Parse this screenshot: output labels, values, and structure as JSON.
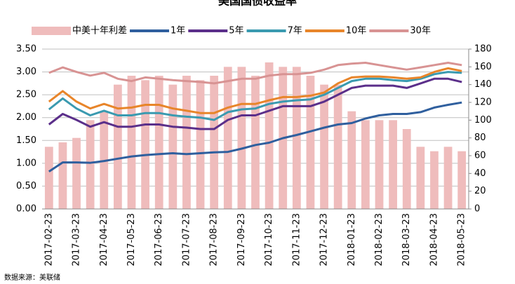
{
  "chart_data": {
    "type": "line",
    "title": "美国国债收益率",
    "source": "数据来源：美联储",
    "categories": [
      "2017-02-23",
      null,
      "2017-03-23",
      null,
      "2017-04-23",
      null,
      "2017-05-23",
      null,
      "2017-06-23",
      null,
      "2017-07-23",
      null,
      "2017-08-23",
      null,
      "2017-09-23",
      null,
      "2017-10-23",
      null,
      "2017-11-23",
      null,
      "2017-12-23",
      null,
      "2018-01-23",
      null,
      "2018-02-23",
      null,
      "2018-03-23",
      null,
      "2018-04-23",
      null,
      "2018-05-23"
    ],
    "series": [
      {
        "name": "中美十年利差",
        "kind": "bar",
        "axis": "y2",
        "color": "#efbcbc",
        "values": [
          70,
          75,
          80,
          100,
          110,
          140,
          150,
          145,
          150,
          140,
          150,
          145,
          150,
          160,
          160,
          150,
          165,
          160,
          160,
          150,
          140,
          140,
          110,
          100,
          100,
          100,
          90,
          70,
          65,
          70,
          65
        ]
      },
      {
        "name": "1年",
        "color": "#2f5f9e",
        "values": [
          0.82,
          1.02,
          1.02,
          1.01,
          1.05,
          1.1,
          1.15,
          1.18,
          1.2,
          1.22,
          1.2,
          1.22,
          1.24,
          1.25,
          1.32,
          1.4,
          1.45,
          1.55,
          1.62,
          1.7,
          1.78,
          1.85,
          1.88,
          1.98,
          2.05,
          2.08,
          2.08,
          2.12,
          2.22,
          2.28,
          2.33
        ]
      },
      {
        "name": "5年",
        "color": "#5b2f8a",
        "values": [
          1.85,
          2.08,
          1.95,
          1.8,
          1.9,
          1.8,
          1.8,
          1.85,
          1.85,
          1.8,
          1.78,
          1.75,
          1.75,
          1.95,
          2.05,
          2.05,
          2.15,
          2.25,
          2.25,
          2.25,
          2.35,
          2.5,
          2.65,
          2.7,
          2.7,
          2.7,
          2.65,
          2.75,
          2.85,
          2.85,
          2.78
        ]
      },
      {
        "name": "7年",
        "color": "#3a9ab0",
        "values": [
          2.18,
          2.42,
          2.2,
          2.05,
          2.15,
          2.05,
          2.05,
          2.1,
          2.1,
          2.05,
          2.02,
          2.0,
          1.95,
          2.12,
          2.18,
          2.2,
          2.3,
          2.35,
          2.38,
          2.4,
          2.5,
          2.65,
          2.8,
          2.85,
          2.85,
          2.82,
          2.8,
          2.85,
          2.95,
          3.0,
          2.98
        ]
      },
      {
        "name": "10年",
        "color": "#e8852a",
        "values": [
          2.35,
          2.58,
          2.35,
          2.2,
          2.3,
          2.2,
          2.22,
          2.28,
          2.28,
          2.2,
          2.15,
          2.1,
          2.1,
          2.22,
          2.3,
          2.3,
          2.38,
          2.45,
          2.45,
          2.48,
          2.55,
          2.75,
          2.88,
          2.9,
          2.9,
          2.88,
          2.85,
          2.88,
          3.0,
          3.08,
          3.02
        ]
      },
      {
        "name": "30年",
        "color": "#d89393",
        "values": [
          2.98,
          3.1,
          3.0,
          2.92,
          2.98,
          2.85,
          2.8,
          2.88,
          2.85,
          2.82,
          2.8,
          2.78,
          2.75,
          2.8,
          2.85,
          2.85,
          2.92,
          2.95,
          2.95,
          2.98,
          3.05,
          3.15,
          3.18,
          3.2,
          3.15,
          3.1,
          3.05,
          3.1,
          3.15,
          3.2,
          3.15
        ]
      }
    ],
    "ylim": [
      0,
      3.5
    ],
    "yticks": [
      {
        "value": 0,
        "label": "0.00"
      },
      {
        "value": 0.5,
        "label": "0.50"
      },
      {
        "value": 1,
        "label": "1.00"
      },
      {
        "value": 1.5,
        "label": "1.50"
      },
      {
        "value": 2,
        "label": "2.00"
      },
      {
        "value": 2.5,
        "label": "2.50"
      },
      {
        "value": 3,
        "label": "3.00"
      },
      {
        "value": 3.5,
        "label": "3.50"
      }
    ],
    "y2lim": [
      0,
      180
    ],
    "y2ticks": [
      0,
      20,
      40,
      60,
      80,
      100,
      120,
      140,
      160,
      180
    ],
    "grid": true,
    "legend": "top"
  }
}
